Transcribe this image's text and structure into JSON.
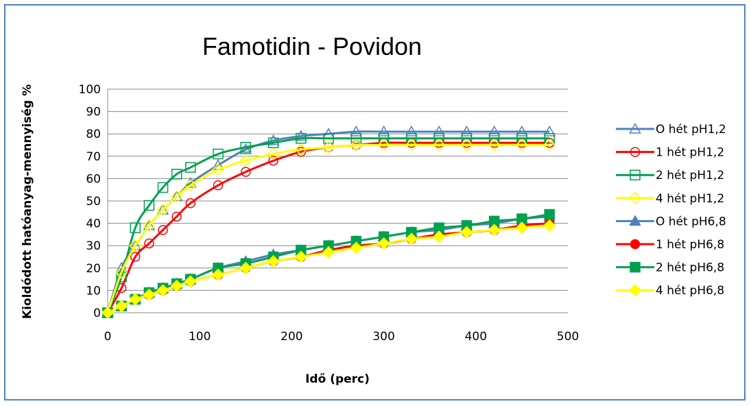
{
  "chart_data": {
    "type": "line",
    "title": "Famotidin - Povidon",
    "xlabel": "Idő (perc)",
    "ylabel": "Kioldódott hatóanyag-mennyiség %",
    "xlim": [
      0,
      500
    ],
    "ylim": [
      0,
      100
    ],
    "xticks": [
      0,
      100,
      200,
      300,
      400,
      500
    ],
    "yticks": [
      0,
      10,
      20,
      30,
      40,
      50,
      60,
      70,
      80,
      90,
      100
    ],
    "x_tick_labels": [
      "0",
      "100",
      "200",
      "300",
      "400",
      "500"
    ],
    "y_tick_labels": [
      "0",
      "10",
      "20",
      "30",
      "40",
      "50",
      "60",
      "70",
      "80",
      "90",
      "100"
    ],
    "grid": "horizontal",
    "legend_position": "right",
    "x": [
      0,
      15,
      30,
      45,
      60,
      75,
      90,
      120,
      150,
      180,
      210,
      240,
      270,
      300,
      330,
      360,
      390,
      420,
      450,
      480
    ],
    "series": [
      {
        "name": "O hét pH1,2",
        "color": "#4f81bd",
        "marker": "triangle",
        "filled": false,
        "values": [
          0,
          20,
          30,
          39,
          46,
          52,
          58,
          66,
          73,
          77,
          79,
          80,
          81,
          81,
          81,
          81,
          81,
          81,
          81,
          81
        ]
      },
      {
        "name": "1 hét pH1,2",
        "color": "#ff0000",
        "marker": "circle",
        "filled": false,
        "values": [
          0,
          11,
          25,
          31,
          37,
          43,
          49,
          57,
          63,
          68,
          72,
          74,
          75,
          76,
          76,
          76,
          76,
          76,
          76,
          76
        ]
      },
      {
        "name": "2 hét pH1,2",
        "color": "#00a050",
        "marker": "square",
        "filled": false,
        "values": [
          0,
          16,
          38,
          48,
          56,
          62,
          65,
          71,
          74,
          76,
          78,
          78,
          78,
          78,
          78,
          78,
          78,
          78,
          78,
          78
        ]
      },
      {
        "name": "4 hét pH1,2",
        "color": "#ffff00",
        "marker": "diamond",
        "filled": false,
        "values": [
          0,
          18,
          30,
          39,
          46,
          52,
          57,
          64,
          68,
          71,
          73,
          74,
          75,
          75,
          75,
          75,
          75,
          75,
          75,
          75
        ]
      },
      {
        "name": "O hét pH6,8",
        "color": "#4f81bd",
        "marker": "triangle",
        "filled": true,
        "values": [
          0,
          3,
          6,
          9,
          11,
          13,
          15,
          20,
          23,
          26,
          28,
          30,
          32,
          34,
          36,
          37,
          39,
          40,
          42,
          43
        ]
      },
      {
        "name": "1 hét pH6,8",
        "color": "#ff0000",
        "marker": "circle",
        "filled": true,
        "values": [
          0,
          3,
          6,
          8,
          10,
          12,
          14,
          17,
          20,
          23,
          25,
          28,
          30,
          31,
          33,
          35,
          36,
          37,
          39,
          40
        ]
      },
      {
        "name": "2 hét pH6,8",
        "color": "#00a050",
        "marker": "square",
        "filled": true,
        "values": [
          0,
          3,
          6,
          9,
          11,
          13,
          15,
          20,
          22,
          25,
          28,
          30,
          32,
          34,
          36,
          38,
          39,
          41,
          42,
          44
        ]
      },
      {
        "name": "4 hét pH6,8",
        "color": "#ffff00",
        "marker": "diamond",
        "filled": true,
        "values": [
          0,
          3,
          6,
          8,
          10,
          12,
          14,
          17,
          20,
          23,
          25,
          27,
          29,
          31,
          33,
          34,
          36,
          37,
          38,
          39
        ]
      }
    ]
  }
}
